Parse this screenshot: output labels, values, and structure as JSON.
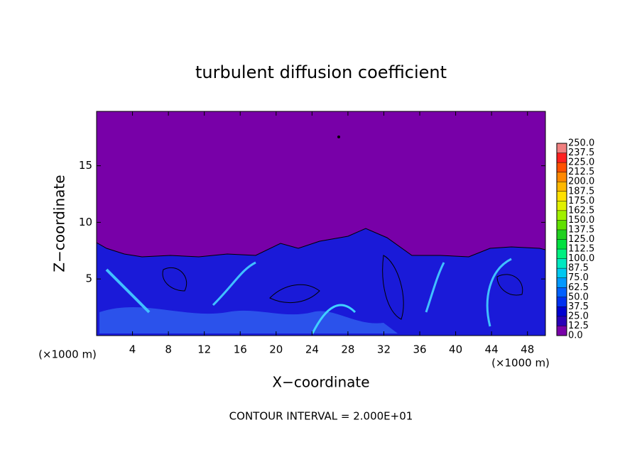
{
  "chart_data": {
    "type": "contour",
    "title": "turbulent diffusion coefficient",
    "xlabel": "X−coordinate",
    "ylabel": "Z−coordinate",
    "x_unit_label": "(×1000 m)",
    "y_unit_label": "(×1000 m)",
    "footer": "CONTOUR INTERVAL = 2.000E+01",
    "xlim": [
      0,
      50
    ],
    "ylim": [
      0,
      19.8
    ],
    "xticks": [
      4,
      8,
      12,
      16,
      20,
      24,
      28,
      32,
      36,
      40,
      44,
      48
    ],
    "yticks": [
      5,
      10,
      15
    ],
    "colorbar": {
      "levels": [
        {
          "value": 0,
          "label": "0.0"
        },
        {
          "value": 12.5,
          "label": "12.5"
        },
        {
          "value": 25,
          "label": "25.0"
        },
        {
          "value": 37.5,
          "label": "37.5"
        },
        {
          "value": 50,
          "label": "50.0"
        },
        {
          "value": 62.5,
          "label": "62.5"
        },
        {
          "value": 75,
          "label": "75.0"
        },
        {
          "value": 87.5,
          "label": "87.5"
        },
        {
          "value": 100,
          "label": "100.0"
        },
        {
          "value": 112.5,
          "label": "112.5"
        },
        {
          "value": 125,
          "label": "125.0"
        },
        {
          "value": 137.5,
          "label": "137.5"
        },
        {
          "value": 150,
          "label": "150.0"
        },
        {
          "value": 162.5,
          "label": "162.5"
        },
        {
          "value": 175,
          "label": "175.0"
        },
        {
          "value": 187.5,
          "label": "187.5"
        },
        {
          "value": 200,
          "label": "200.0"
        },
        {
          "value": 212.5,
          "label": "212.5"
        },
        {
          "value": 225,
          "label": "225.0"
        },
        {
          "value": 237.5,
          "label": "237.5"
        },
        {
          "value": 250,
          "label": "250.0"
        }
      ],
      "colors": [
        "#7800a8",
        "#2800b8",
        "#0000d0",
        "#0030f0",
        "#0060ff",
        "#0098ff",
        "#00c8f0",
        "#00e8c0",
        "#00f080",
        "#00e040",
        "#20d020",
        "#60e000",
        "#a0f000",
        "#e0f000",
        "#ffe000",
        "#ffb800",
        "#ff8800",
        "#ff5000",
        "#ff2020",
        "#f08080"
      ]
    }
  }
}
